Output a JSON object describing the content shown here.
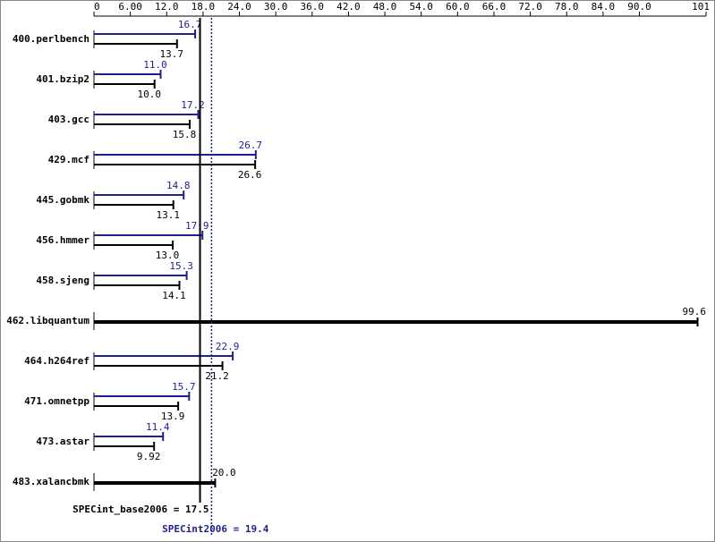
{
  "chart_data": {
    "type": "bar",
    "orientation": "horizontal",
    "categories": [
      "400.perlbench",
      "401.bzip2",
      "403.gcc",
      "429.mcf",
      "445.gobmk",
      "456.hmmer",
      "458.sjeng",
      "462.libquantum",
      "464.h264ref",
      "471.omnetpp",
      "473.astar",
      "483.xalancbmk"
    ],
    "series": [
      {
        "color": "#1f1f8f",
        "values": [
          16.7,
          11.0,
          17.2,
          26.7,
          14.8,
          17.9,
          15.3,
          null,
          22.9,
          15.7,
          11.4,
          null
        ],
        "value_labels": [
          "16.7",
          "11.0",
          "17.2",
          "26.7",
          "14.8",
          "17.9",
          "15.3",
          null,
          "22.9",
          "15.7",
          "11.4",
          null
        ]
      },
      {
        "color": "#000000",
        "values": [
          13.7,
          10.0,
          15.8,
          26.6,
          13.1,
          13.0,
          14.1,
          99.6,
          21.2,
          13.9,
          9.92,
          20.0
        ],
        "value_labels": [
          "13.7",
          "10.0",
          "15.8",
          "26.6",
          "13.1",
          "13.0",
          "14.1",
          "99.6",
          "21.2",
          "13.9",
          "9.92",
          "20.0"
        ]
      }
    ],
    "xlim": [
      0,
      101
    ],
    "xticks": [
      0,
      {
        "value": 6,
        "label": "6.00"
      },
      {
        "value": 12,
        "label": "12.0"
      },
      {
        "value": 18,
        "label": "18.0"
      },
      {
        "value": 24,
        "label": "24.0"
      },
      {
        "value": 30,
        "label": "30.0"
      },
      {
        "value": 36,
        "label": "36.0"
      },
      {
        "value": 42,
        "label": "42.0"
      },
      {
        "value": 48,
        "label": "48.0"
      },
      {
        "value": 54,
        "label": "54.0"
      },
      {
        "value": 60,
        "label": "60.0"
      },
      {
        "value": 66,
        "label": "66.0"
      },
      {
        "value": 72,
        "label": "72.0"
      },
      {
        "value": 78,
        "label": "78.0"
      },
      {
        "value": 84,
        "label": "84.0"
      },
      {
        "value": 90,
        "label": "90.0"
      },
      101
    ],
    "reference_lines": [
      {
        "label": "SPECint_base2006 = 17.5",
        "value": 17.5,
        "color": "#000000",
        "style": "solid"
      },
      {
        "label": "SPECint2006 = 19.4",
        "value": 19.4,
        "color": "#1f1f8f",
        "style": "dotted"
      }
    ]
  }
}
